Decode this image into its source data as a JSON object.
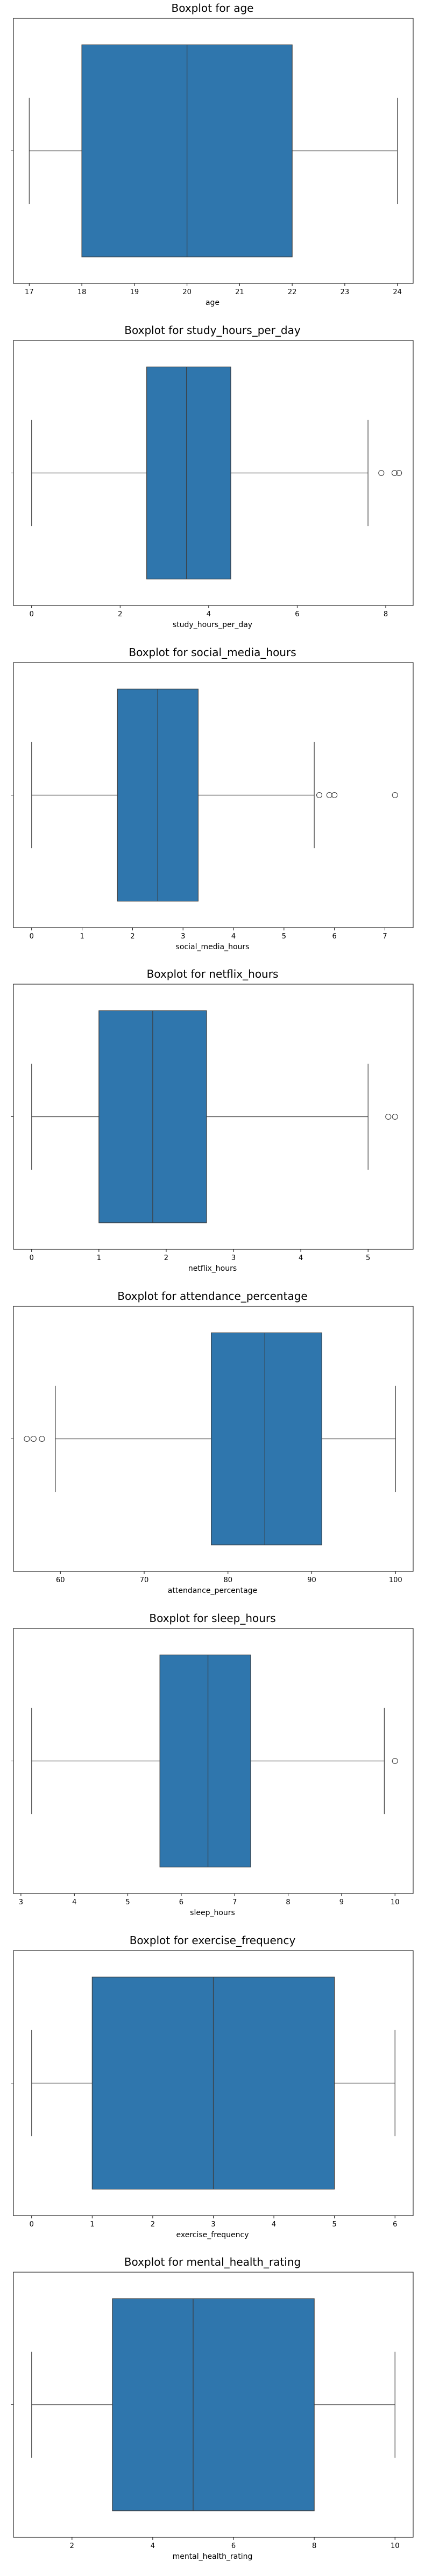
{
  "chart_data": [
    {
      "type": "boxplot",
      "title": "Boxplot for age",
      "xlabel": "age",
      "xlim": [
        16.7,
        24.3
      ],
      "xticks": [
        17,
        18,
        19,
        20,
        21,
        22,
        23,
        24
      ],
      "whisker_low": 17,
      "q1": 18,
      "median": 20,
      "q3": 22,
      "whisker_high": 24,
      "outliers": [],
      "box_color": "#2f76ad"
    },
    {
      "type": "boxplot",
      "title": "Boxplot for study_hours_per_day",
      "xlabel": "study_hours_per_day",
      "xlim": [
        -0.41,
        8.62
      ],
      "xticks": [
        0,
        2,
        4,
        6,
        8
      ],
      "whisker_low": 0,
      "q1": 2.6,
      "median": 3.5,
      "q3": 4.5,
      "whisker_high": 7.6,
      "outliers": [
        7.9,
        8.2,
        8.3
      ],
      "box_color": "#2f76ad"
    },
    {
      "type": "boxplot",
      "title": "Boxplot for social_media_hours",
      "xlabel": "social_media_hours",
      "xlim": [
        -0.36,
        7.56
      ],
      "xticks": [
        0,
        1,
        2,
        3,
        4,
        5,
        6,
        7
      ],
      "whisker_low": 0,
      "q1": 1.7,
      "median": 2.5,
      "q3": 3.3,
      "whisker_high": 5.6,
      "outliers": [
        5.7,
        5.9,
        6.0,
        7.2
      ],
      "box_color": "#2f76ad"
    },
    {
      "type": "boxplot",
      "title": "Boxplot for netflix_hours",
      "xlabel": "netflix_hours",
      "xlim": [
        -0.27,
        5.67
      ],
      "xticks": [
        0,
        1,
        2,
        3,
        4,
        5
      ],
      "whisker_low": 0,
      "q1": 1.0,
      "median": 1.8,
      "q3": 2.6,
      "whisker_high": 5.0,
      "outliers": [
        5.3,
        5.4
      ],
      "box_color": "#2f76ad"
    },
    {
      "type": "boxplot",
      "title": "Boxplot for attendance_percentage",
      "xlabel": "attendance_percentage",
      "xlim": [
        54.4,
        102.1
      ],
      "xticks": [
        60,
        70,
        80,
        90,
        100
      ],
      "whisker_low": 59.4,
      "q1": 78,
      "median": 84.4,
      "q3": 91.2,
      "whisker_high": 100,
      "outliers": [
        56.0,
        56.8,
        57.8
      ],
      "box_color": "#2f76ad"
    },
    {
      "type": "boxplot",
      "title": "Boxplot for sleep_hours",
      "xlabel": "sleep_hours",
      "xlim": [
        2.86,
        10.34
      ],
      "xticks": [
        3,
        4,
        5,
        6,
        7,
        8,
        9,
        10
      ],
      "whisker_low": 3.2,
      "q1": 5.6,
      "median": 6.5,
      "q3": 7.3,
      "whisker_high": 9.8,
      "outliers": [
        10.0
      ],
      "box_color": "#2f76ad"
    },
    {
      "type": "boxplot",
      "title": "Boxplot for exercise_frequency",
      "xlabel": "exercise_frequency",
      "xlim": [
        -0.3,
        6.3
      ],
      "xticks": [
        0,
        1,
        2,
        3,
        4,
        5,
        6
      ],
      "whisker_low": 0,
      "q1": 1,
      "median": 3,
      "q3": 5,
      "whisker_high": 6,
      "outliers": [],
      "box_color": "#2f76ad"
    },
    {
      "type": "boxplot",
      "title": "Boxplot for mental_health_rating",
      "xlabel": "mental_health_rating",
      "xlim": [
        0.55,
        10.45
      ],
      "xticks": [
        2,
        4,
        6,
        8,
        10
      ],
      "whisker_low": 1,
      "q1": 3,
      "median": 5,
      "q3": 8,
      "whisker_high": 10,
      "outliers": [],
      "box_color": "#2f76ad"
    }
  ]
}
